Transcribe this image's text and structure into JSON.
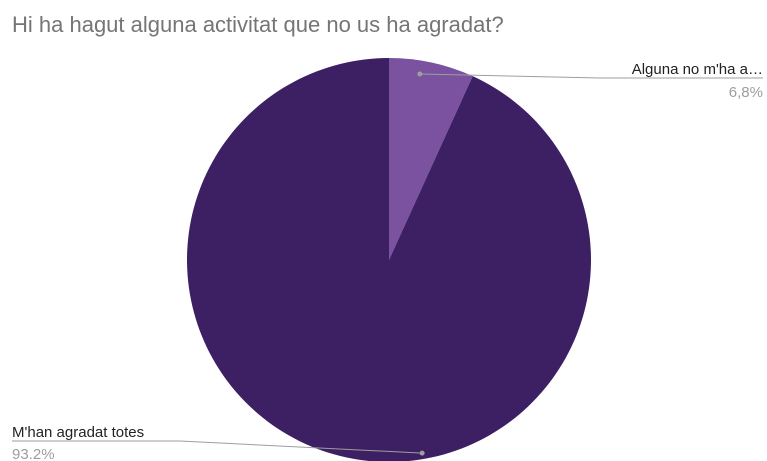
{
  "chart_data": {
    "type": "pie",
    "title": "Hi ha hagut alguna activitat que no us ha agradat?",
    "slices": [
      {
        "label": "Alguna no m'ha a…",
        "value": 6.8,
        "percent_label": "6,8%",
        "color": "#7a52a0"
      },
      {
        "label": "M'han agradat totes",
        "value": 93.2,
        "percent_label": "93.2%",
        "color": "#3d1f63"
      }
    ],
    "start_angle": "12 o'clock",
    "direction": "clockwise",
    "legend": "none"
  }
}
